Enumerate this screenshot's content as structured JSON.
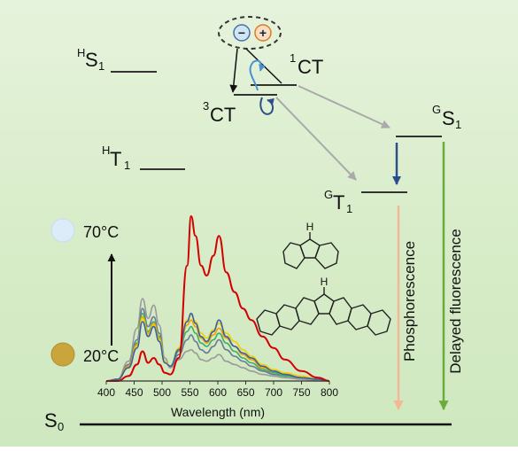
{
  "levels": {
    "hs1": {
      "main": "S",
      "sup": "H",
      "sub": "1"
    },
    "ht1": {
      "main": "T",
      "sup": "H",
      "sub": "1"
    },
    "ct1": {
      "main": "CT",
      "sup": "1"
    },
    "ct3": {
      "main": "CT",
      "sup": "3"
    },
    "gs1": {
      "main": "S",
      "sup": "G",
      "sub": "1"
    },
    "gt1": {
      "main": "T",
      "sup": "G",
      "sub": "1"
    },
    "s0": {
      "main": "S",
      "sub": "0"
    }
  },
  "charge_pair": {
    "minus": "−",
    "plus": "+"
  },
  "emission_labels": {
    "phosphorescence": "Phosphorescence",
    "delayed_fluorescence": "Delayed fluorescence"
  },
  "temperature": {
    "high": "70°C",
    "low": "20°C"
  },
  "molecule": {
    "h_label": "H"
  },
  "colors": {
    "phosphorescence_arrow": "#f2b896",
    "delayed_fluorescence_arrow": "#6aab3c",
    "isc_arrow": "#2c4f8c",
    "rtp_arrow": "#aaaaaa",
    "hot_spectrum": "#d40000",
    "cold_dot": "#c9a53c",
    "hot_dot": "#dcecf8"
  },
  "chart_data": {
    "type": "line",
    "xlabel": "Wavelength (nm)",
    "ylabel": "",
    "xlim": [
      400,
      800
    ],
    "ticks": [
      400,
      450,
      500,
      550,
      600,
      650,
      700,
      750,
      800
    ],
    "x": [
      400,
      420,
      440,
      455,
      465,
      475,
      485,
      495,
      505,
      515,
      530,
      545,
      552,
      560,
      570,
      580,
      592,
      602,
      615,
      630,
      645,
      660,
      680,
      700,
      720,
      750,
      780,
      800
    ],
    "series": [
      {
        "color": "#d40000",
        "values": [
          0,
          0,
          3,
          10,
          18,
          11,
          14,
          10,
          5,
          4,
          14,
          70,
          100,
          88,
          70,
          64,
          76,
          88,
          66,
          54,
          44,
          37,
          27,
          20,
          13,
          6,
          2,
          0
        ]
      },
      {
        "color": "#3b5fa8",
        "values": [
          0,
          1,
          8,
          20,
          36,
          27,
          33,
          24,
          11,
          9,
          19,
          36,
          41,
          35,
          27,
          24,
          30,
          37,
          27,
          21,
          17,
          14,
          9,
          6,
          4,
          2,
          1,
          0
        ]
      },
      {
        "color": "#f0d000",
        "values": [
          0,
          1,
          8,
          21,
          38,
          28,
          34,
          25,
          12,
          9,
          20,
          37,
          40,
          36,
          29,
          26,
          31,
          35,
          29,
          24,
          19,
          15,
          10,
          7,
          5,
          3,
          1,
          0
        ]
      },
      {
        "color": "#f5a000",
        "values": [
          0,
          1,
          9,
          22,
          39,
          29,
          35,
          26,
          12,
          9,
          19,
          34,
          37,
          33,
          26,
          23,
          28,
          32,
          26,
          21,
          16,
          13,
          8,
          6,
          4,
          2,
          1,
          0
        ]
      },
      {
        "color": "#40b060",
        "values": [
          0,
          1,
          9,
          23,
          41,
          30,
          36,
          27,
          12,
          9,
          18,
          30,
          33,
          29,
          23,
          21,
          25,
          29,
          23,
          18,
          14,
          11,
          7,
          5,
          3,
          2,
          1,
          0
        ]
      },
      {
        "color": "#6a7a9a",
        "values": [
          0,
          1,
          10,
          25,
          44,
          33,
          39,
          29,
          12,
          9,
          16,
          25,
          28,
          24,
          19,
          17,
          21,
          25,
          19,
          15,
          12,
          9,
          6,
          4,
          3,
          2,
          1,
          0
        ]
      },
      {
        "color": "#9a9a9a",
        "values": [
          0,
          1,
          12,
          32,
          50,
          38,
          46,
          34,
          14,
          8,
          13,
          18,
          19,
          17,
          13,
          12,
          14,
          16,
          12,
          10,
          8,
          6,
          4,
          3,
          2,
          1,
          0,
          0
        ]
      }
    ]
  }
}
